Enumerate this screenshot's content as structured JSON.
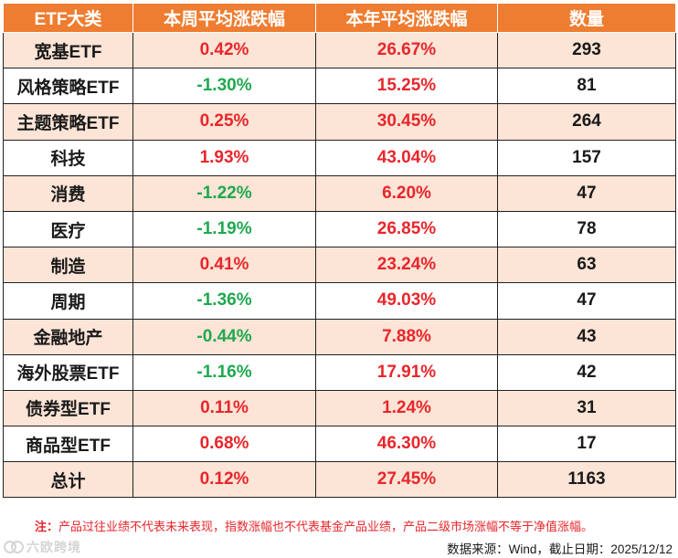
{
  "table": {
    "headers": [
      "ETF大类",
      "本周平均涨跌幅",
      "本年平均涨跌幅",
      "数量"
    ],
    "rows": [
      {
        "category": "宽基ETF",
        "weekly": "0.42%",
        "yearly": "26.67%",
        "count": "293",
        "weekly_dir": "pos",
        "yearly_dir": "pos"
      },
      {
        "category": "风格策略ETF",
        "weekly": "-1.30%",
        "yearly": "15.25%",
        "count": "81",
        "weekly_dir": "neg",
        "yearly_dir": "pos"
      },
      {
        "category": "主题策略ETF",
        "weekly": "0.25%",
        "yearly": "30.45%",
        "count": "264",
        "weekly_dir": "pos",
        "yearly_dir": "pos"
      },
      {
        "category": "科技",
        "weekly": "1.93%",
        "yearly": "43.04%",
        "count": "157",
        "weekly_dir": "pos",
        "yearly_dir": "pos"
      },
      {
        "category": "消费",
        "weekly": "-1.22%",
        "yearly": "6.20%",
        "count": "47",
        "weekly_dir": "neg",
        "yearly_dir": "pos"
      },
      {
        "category": "医疗",
        "weekly": "-1.19%",
        "yearly": "26.85%",
        "count": "78",
        "weekly_dir": "neg",
        "yearly_dir": "pos"
      },
      {
        "category": "制造",
        "weekly": "0.41%",
        "yearly": "23.24%",
        "count": "63",
        "weekly_dir": "pos",
        "yearly_dir": "pos"
      },
      {
        "category": "周期",
        "weekly": "-1.36%",
        "yearly": "49.03%",
        "count": "47",
        "weekly_dir": "neg",
        "yearly_dir": "pos"
      },
      {
        "category": "金融地产",
        "weekly": "-0.44%",
        "yearly": "7.88%",
        "count": "43",
        "weekly_dir": "neg",
        "yearly_dir": "pos"
      },
      {
        "category": "海外股票ETF",
        "weekly": "-1.16%",
        "yearly": "17.91%",
        "count": "42",
        "weekly_dir": "neg",
        "yearly_dir": "pos"
      },
      {
        "category": "债券型ETF",
        "weekly": "0.11%",
        "yearly": "1.24%",
        "count": "31",
        "weekly_dir": "pos",
        "yearly_dir": "pos"
      },
      {
        "category": "商品型ETF",
        "weekly": "0.68%",
        "yearly": "46.30%",
        "count": "17",
        "weekly_dir": "pos",
        "yearly_dir": "pos"
      },
      {
        "category": "总计",
        "weekly": "0.12%",
        "yearly": "27.45%",
        "count": "1163",
        "weekly_dir": "pos",
        "yearly_dir": "pos"
      }
    ]
  },
  "footer": {
    "note_label": "注：",
    "note_text": "产品过往业绩不代表未来表现，指数涨幅也不代表基金产品业绩，产品二级市场涨幅不等于净值涨幅。",
    "source": "数据来源：Wind，截止日期：2025/12/12",
    "watermark_text": "六欧跨境"
  },
  "colors": {
    "header_bg": "#ee7d31",
    "stripe_bg": "#fce4d6",
    "positive": "#e8262b",
    "negative": "#1fa84f"
  }
}
